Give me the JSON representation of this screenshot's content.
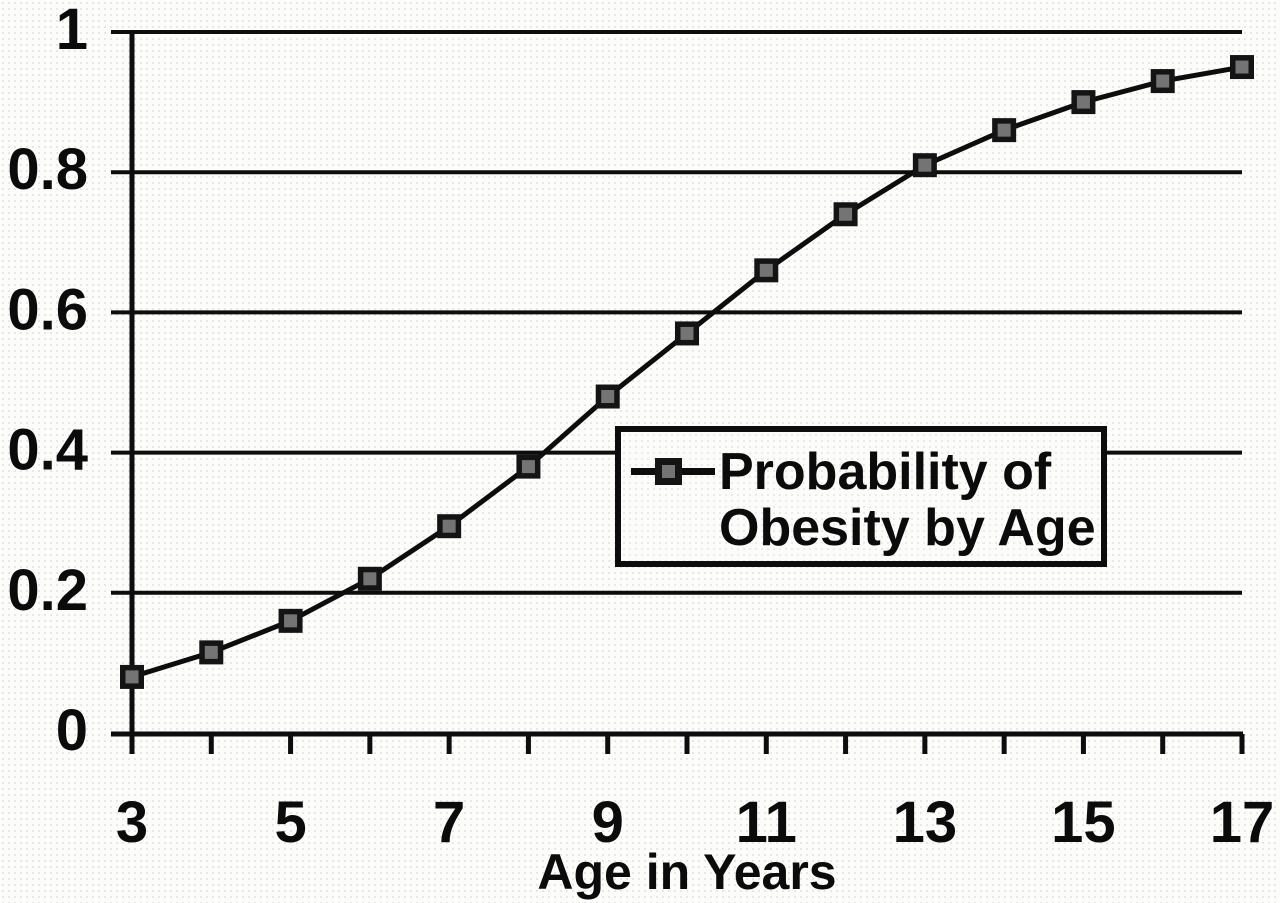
{
  "chart_data": {
    "type": "line",
    "title": "",
    "xlabel": "Age in Years",
    "ylabel": "",
    "x": [
      3,
      4,
      5,
      6,
      7,
      8,
      9,
      10,
      11,
      12,
      13,
      14,
      15,
      16,
      17
    ],
    "series": [
      {
        "name": "Probability of Obesity by Age",
        "values": [
          0.08,
          0.115,
          0.16,
          0.22,
          0.295,
          0.38,
          0.48,
          0.57,
          0.66,
          0.74,
          0.81,
          0.86,
          0.9,
          0.93,
          0.95
        ]
      }
    ],
    "xlim": [
      3,
      17
    ],
    "ylim": [
      0,
      1
    ],
    "x_major_tick_labels": [
      "3",
      "5",
      "7",
      "9",
      "11",
      "13",
      "15",
      "17"
    ],
    "x_minor_tick_step": 1,
    "y_ticks": [
      0,
      0.2,
      0.4,
      0.6,
      0.8,
      1
    ],
    "y_tick_labels": [
      "0",
      "0.2",
      "0.4",
      "0.6",
      "0.8",
      "1"
    ],
    "grid": "horizontal-only",
    "marker": "filled-square",
    "legend": {
      "position": "middle-right",
      "marker": "square-on-line",
      "lines": [
        "Probability of",
        "Obesity by Age"
      ],
      "label": "Probability of Obesity by Age"
    },
    "colors": {
      "line": "#0d0d0d",
      "marker_fill": "#141414",
      "marker_center": "#8c8c8c",
      "text": "#0b0b0b",
      "background": "#fcfcfa"
    }
  }
}
